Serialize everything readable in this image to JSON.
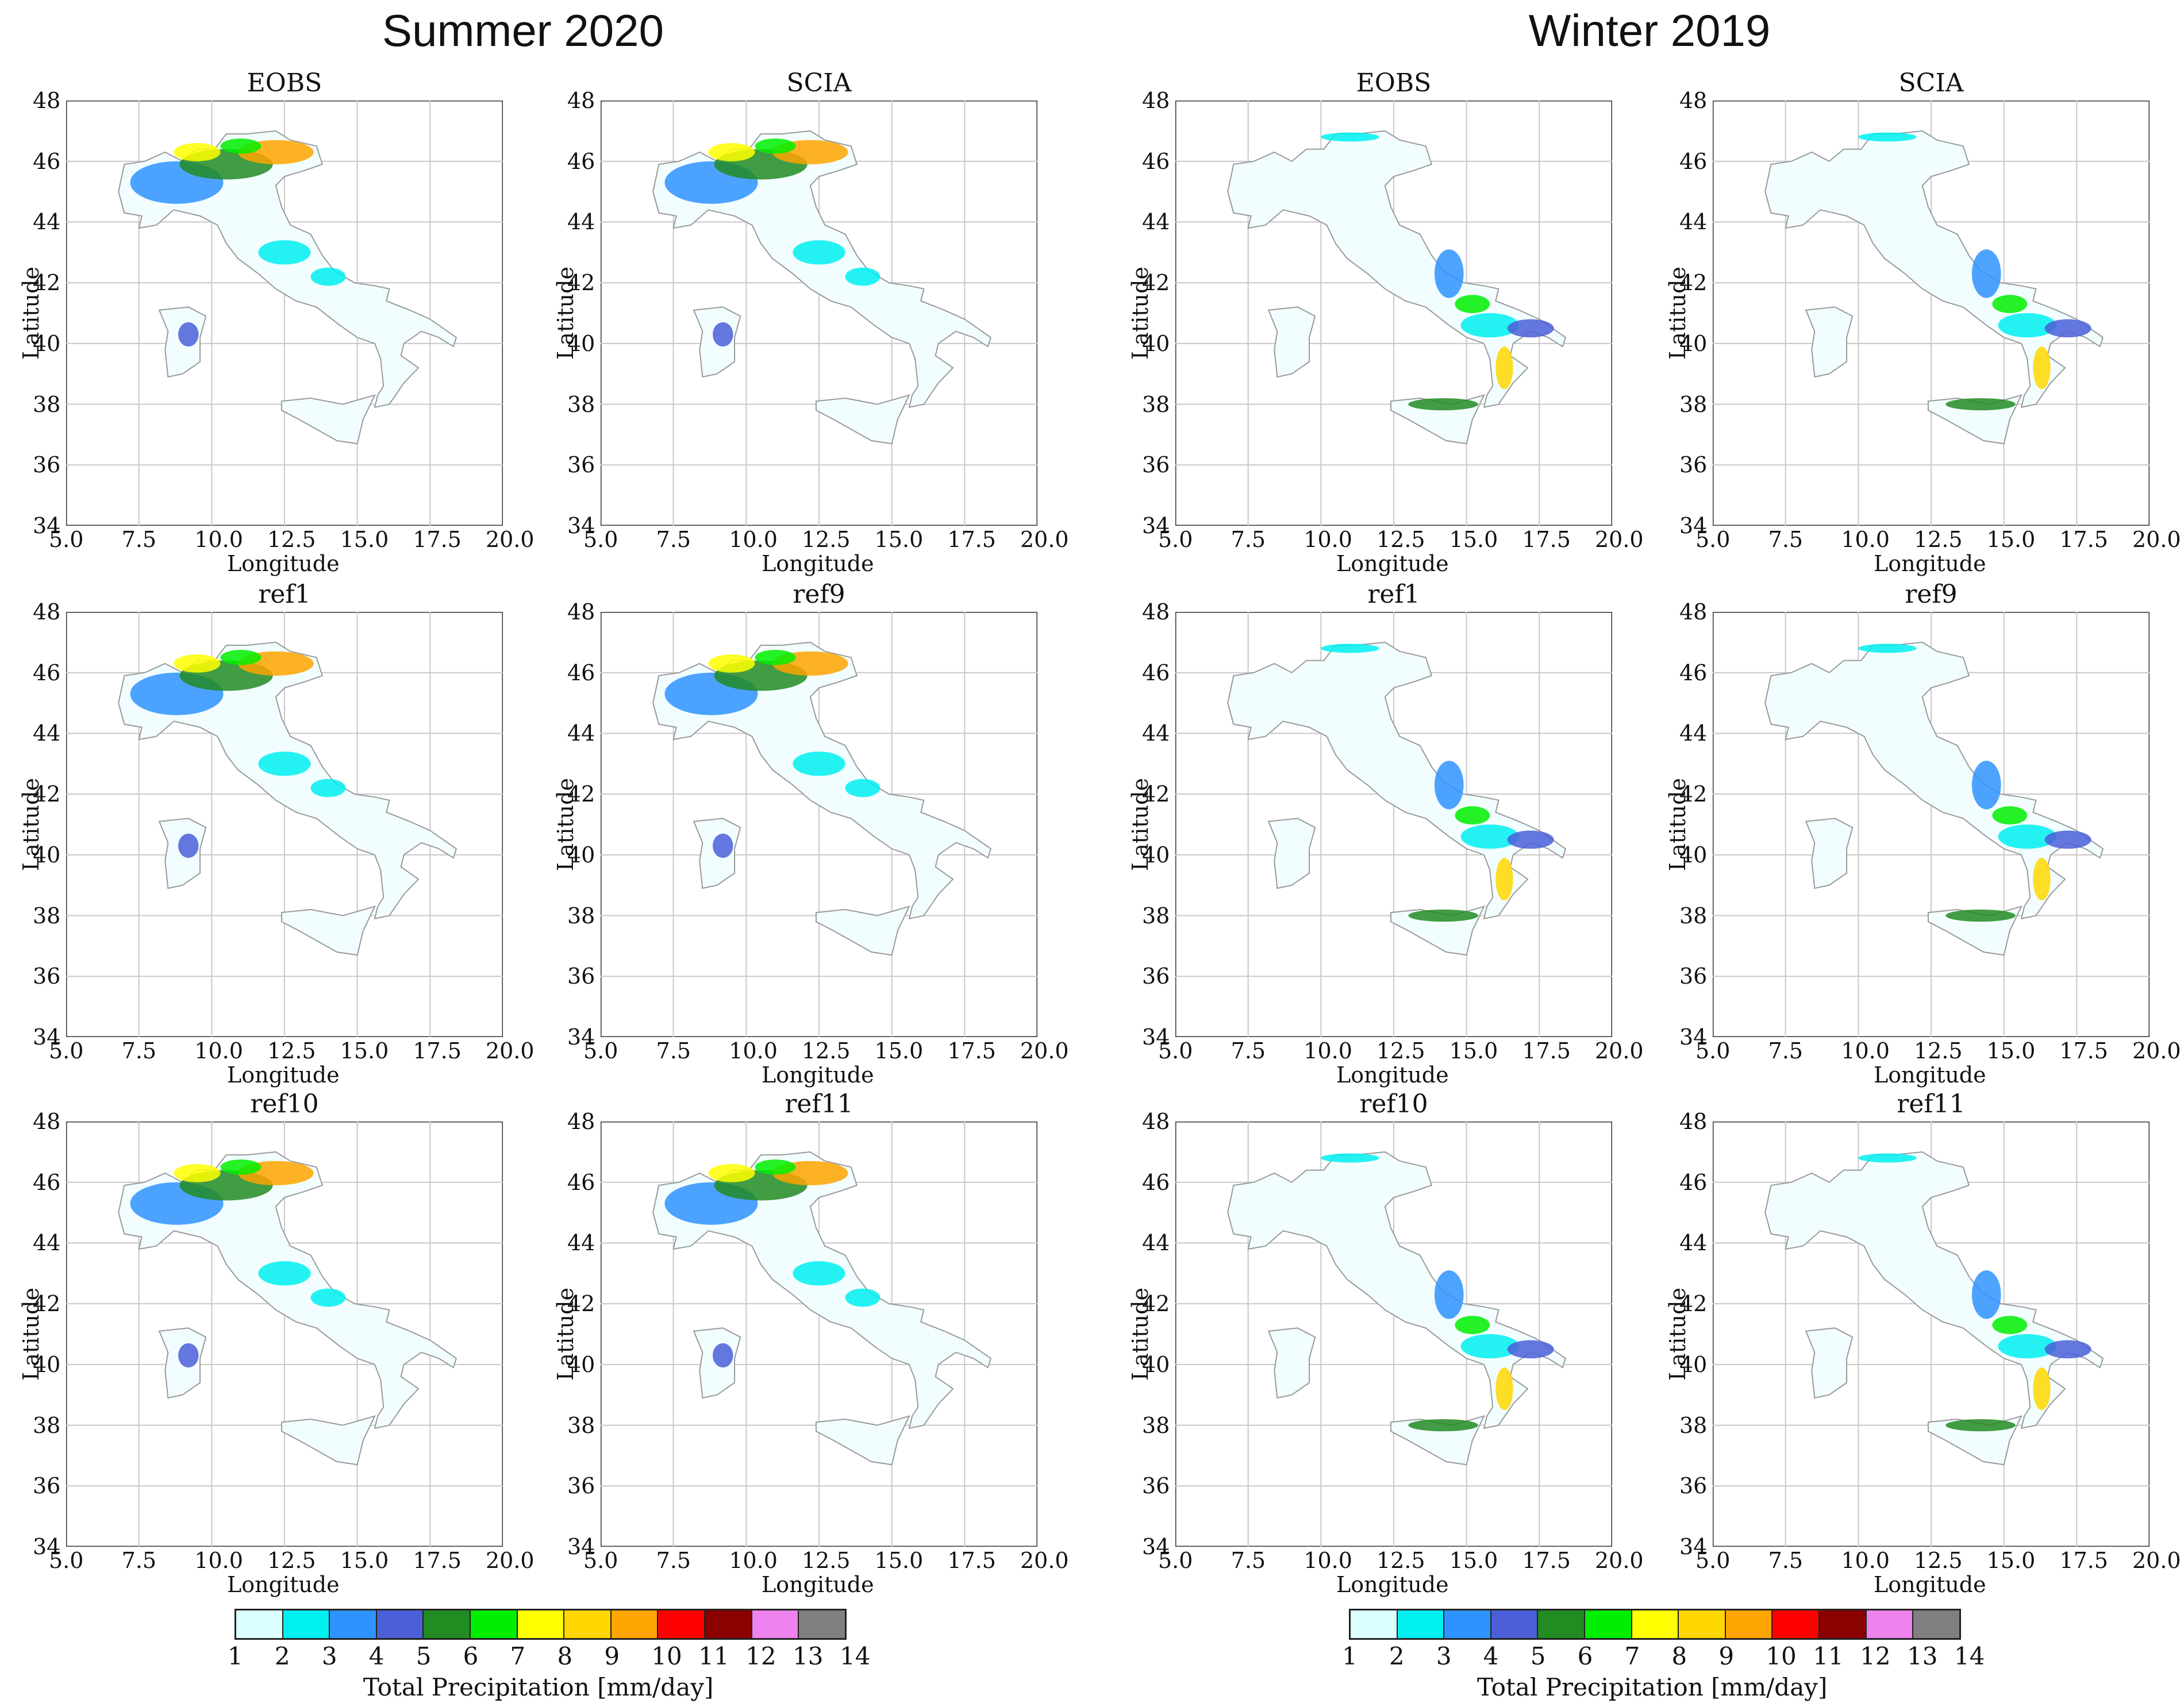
{
  "group_titles": [
    "Summer 2020",
    "Winter 2019"
  ],
  "axis": {
    "xlabel": "Longitude",
    "ylabel": "Latitude",
    "xticks": [
      "5.0",
      "7.5",
      "10.0",
      "12.5",
      "15.0",
      "17.5",
      "20.0"
    ],
    "yticks": [
      "48",
      "46",
      "44",
      "42",
      "40",
      "38",
      "36",
      "34"
    ]
  },
  "panels": [
    {
      "title": "EOBS",
      "season": "summer"
    },
    {
      "title": "SCIA",
      "season": "summer"
    },
    {
      "title": "EOBS",
      "season": "winter"
    },
    {
      "title": "SCIA",
      "season": "winter"
    },
    {
      "title": "ref1",
      "season": "summer"
    },
    {
      "title": "ref9",
      "season": "summer"
    },
    {
      "title": "ref1",
      "season": "winter"
    },
    {
      "title": "ref9",
      "season": "winter"
    },
    {
      "title": "ref10",
      "season": "summer"
    },
    {
      "title": "ref11",
      "season": "summer"
    },
    {
      "title": "ref10",
      "season": "winter"
    },
    {
      "title": "ref11",
      "season": "winter"
    }
  ],
  "colorbar": {
    "label": "Total Precipitation [mm/day]",
    "ticks": [
      "1",
      "2",
      "3",
      "4",
      "5",
      "6",
      "7",
      "8",
      "9",
      "10",
      "11",
      "12",
      "13",
      "14"
    ],
    "colors": [
      "#dcffff",
      "#00f0f0",
      "#2f93ff",
      "#4b5fd8",
      "#228b22",
      "#00ee00",
      "#ffff00",
      "#ffd700",
      "#ffa500",
      "#ff0000",
      "#8b0000",
      "#ee82ee",
      "#808080"
    ]
  }
}
